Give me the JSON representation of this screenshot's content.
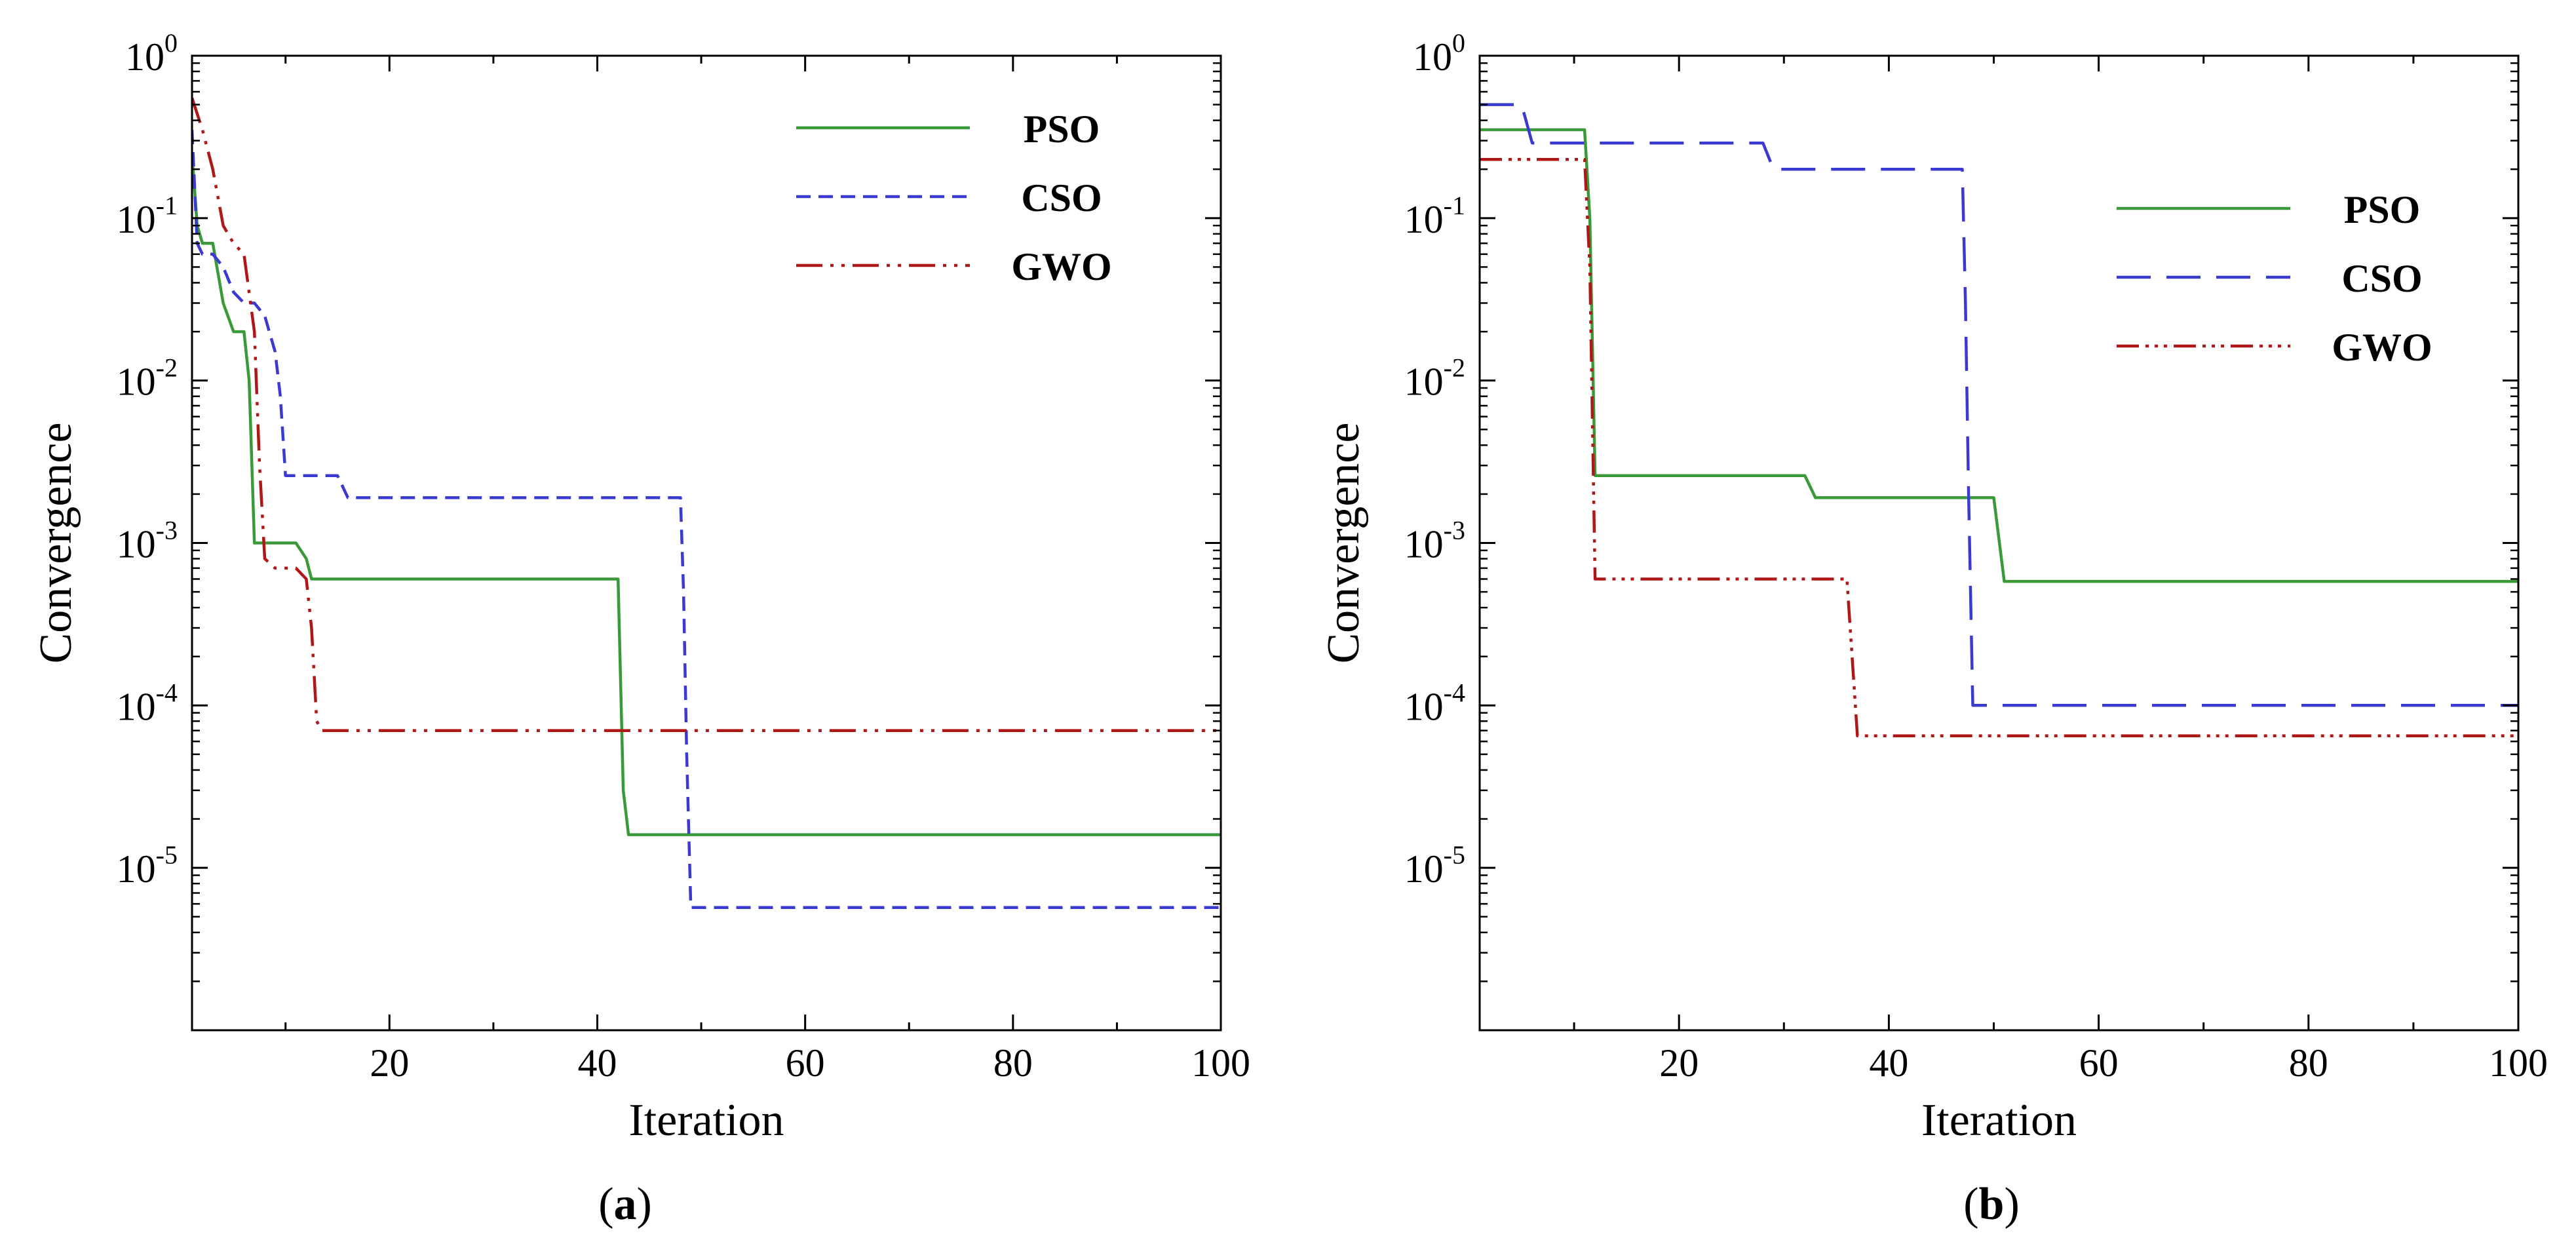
{
  "chart_data": [
    {
      "type": "line",
      "panel_label": "(a)",
      "xlabel": "Iteration",
      "ylabel": "Convergence",
      "xlim": [
        1,
        100
      ],
      "ylim": [
        1e-06,
        1
      ],
      "yscale": "log",
      "xticks": [
        20,
        40,
        60,
        80,
        100
      ],
      "xtick_labels": [
        "20",
        "40",
        "60",
        "80",
        "100"
      ],
      "yticks": [
        1,
        0.1,
        0.01,
        0.001,
        0.0001,
        1e-05
      ],
      "ytick_labels": [
        {
          "base": "10",
          "exp": "0"
        },
        {
          "base": "10",
          "exp": "-1"
        },
        {
          "base": "10",
          "exp": "-2"
        },
        {
          "base": "10",
          "exp": "-3"
        },
        {
          "base": "10",
          "exp": "-4"
        },
        {
          "base": "10",
          "exp": "-5"
        }
      ],
      "grid": false,
      "legend_position": "top-right",
      "series": [
        {
          "name": "PSO",
          "color": "#3a9a3a",
          "style": "solid",
          "x": [
            1,
            1.5,
            2,
            3,
            4,
            5,
            6,
            6.5,
            7,
            8,
            9,
            10,
            11,
            12,
            12.5,
            20,
            40,
            42,
            42.5,
            43,
            44,
            60,
            80,
            100
          ],
          "y": [
            0.25,
            0.09,
            0.07,
            0.07,
            0.03,
            0.02,
            0.02,
            0.01,
            0.001,
            0.001,
            0.001,
            0.001,
            0.001,
            0.0008,
            0.0006,
            0.0006,
            0.0006,
            0.0006,
            3e-05,
            1.6e-05,
            1.6e-05,
            1.6e-05,
            1.6e-05,
            1.6e-05
          ]
        },
        {
          "name": "CSO",
          "color": "#3a3ad0",
          "style": "dashed",
          "x": [
            1,
            1.5,
            2,
            3,
            4,
            5,
            6,
            7,
            8,
            9,
            9.5,
            10,
            10.5,
            15,
            16,
            20,
            40,
            48,
            48.3,
            48.6,
            49,
            60,
            80,
            100
          ],
          "y": [
            0.35,
            0.07,
            0.06,
            0.06,
            0.05,
            0.035,
            0.03,
            0.03,
            0.025,
            0.015,
            0.008,
            0.0026,
            0.0026,
            0.0026,
            0.0019,
            0.0019,
            0.0019,
            0.0019,
            0.0005,
            5e-05,
            5.7e-06,
            5.7e-06,
            5.7e-06,
            5.7e-06
          ]
        },
        {
          "name": "GWO",
          "color": "#b01818",
          "style": "dashdotdot",
          "x": [
            1,
            2,
            3,
            4,
            5,
            6,
            7,
            7.5,
            8,
            9,
            10,
            11,
            12,
            12.5,
            13,
            13.5,
            20,
            40,
            60,
            80,
            100
          ],
          "y": [
            0.55,
            0.35,
            0.2,
            0.09,
            0.07,
            0.06,
            0.02,
            0.003,
            0.0008,
            0.0007,
            0.0007,
            0.0007,
            0.0006,
            0.0003,
            8e-05,
            7e-05,
            7e-05,
            7e-05,
            7e-05,
            7e-05,
            7e-05
          ]
        }
      ]
    },
    {
      "type": "line",
      "panel_label": "(b)",
      "xlabel": "Iteration",
      "ylabel": "Convergence",
      "xlim": [
        1,
        100
      ],
      "ylim": [
        1e-06,
        1
      ],
      "yscale": "log",
      "xticks": [
        20,
        40,
        60,
        80,
        100
      ],
      "xtick_labels": [
        "20",
        "40",
        "60",
        "80",
        "100"
      ],
      "yticks": [
        1,
        0.1,
        0.01,
        0.001,
        0.0001,
        1e-05
      ],
      "ytick_labels": [
        {
          "base": "10",
          "exp": "0"
        },
        {
          "base": "10",
          "exp": "-1"
        },
        {
          "base": "10",
          "exp": "-2"
        },
        {
          "base": "10",
          "exp": "-3"
        },
        {
          "base": "10",
          "exp": "-4"
        },
        {
          "base": "10",
          "exp": "-5"
        }
      ],
      "grid": false,
      "legend_position": "top-right",
      "series": [
        {
          "name": "PSO",
          "color": "#3a9a3a",
          "style": "solid",
          "x": [
            1,
            10,
            11,
            11.5,
            12,
            20,
            32,
            33,
            40,
            50,
            51,
            60,
            80,
            100
          ],
          "y": [
            0.35,
            0.35,
            0.35,
            0.1,
            0.0026,
            0.0026,
            0.0026,
            0.0019,
            0.0019,
            0.0019,
            0.00058,
            0.00058,
            0.00058,
            0.00058
          ]
        },
        {
          "name": "CSO",
          "color": "#3a3ad0",
          "style": "longdash",
          "x": [
            1,
            5,
            6,
            10,
            20,
            28,
            29,
            40,
            47,
            47.3,
            47.6,
            48,
            60,
            80,
            100
          ],
          "y": [
            0.5,
            0.5,
            0.29,
            0.29,
            0.29,
            0.29,
            0.2,
            0.2,
            0.2,
            0.03,
            0.002,
            0.0001,
            0.0001,
            0.0001,
            0.0001
          ]
        },
        {
          "name": "GWO",
          "color": "#b01818",
          "style": "dashdotdotdot",
          "x": [
            1,
            10,
            11,
            11.5,
            12,
            20,
            36,
            37,
            40,
            60,
            80,
            100
          ],
          "y": [
            0.23,
            0.23,
            0.23,
            0.05,
            0.0006,
            0.0006,
            0.0006,
            6.5e-05,
            6.5e-05,
            6.5e-05,
            6.5e-05,
            6.5e-05
          ]
        }
      ]
    }
  ]
}
